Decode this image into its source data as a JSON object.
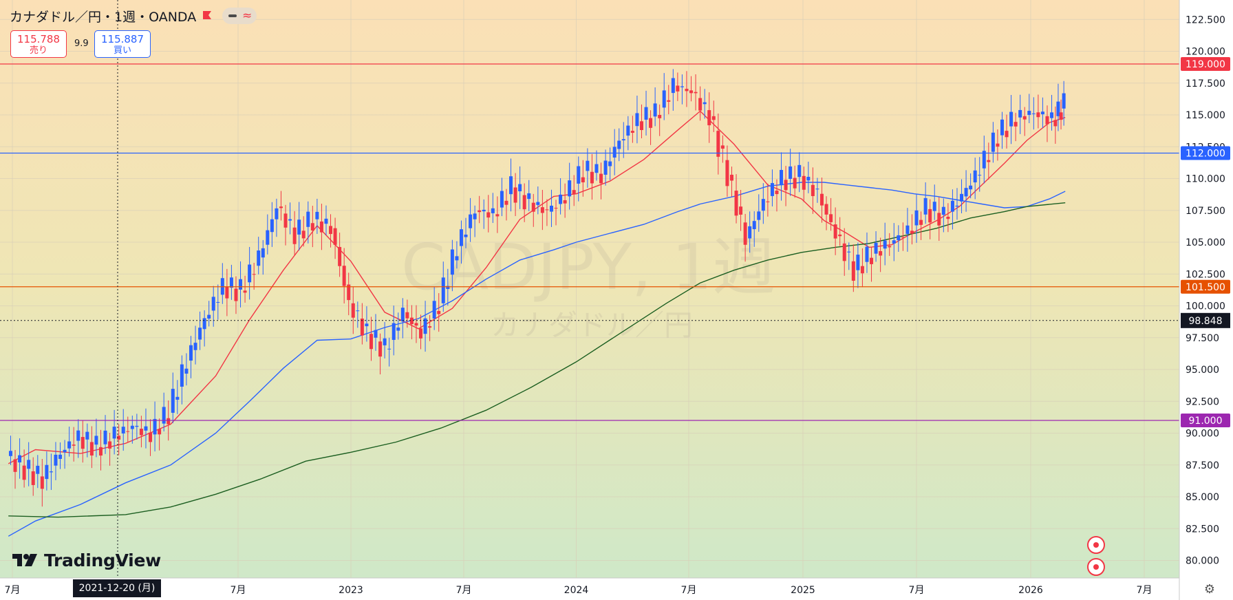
{
  "header": {
    "title": "カナダドル／円・1週・OANDA",
    "sell_price": "115.788",
    "sell_label": "売り",
    "buy_price": "115.887",
    "buy_label": "買い",
    "spread": "9.9"
  },
  "watermark": {
    "symbol": "CADJPY, 1週",
    "name": "カナダドル／円"
  },
  "logo_text": "TradingView",
  "crosshair_date_label": "2021-12-20 (月)",
  "colors": {
    "up": "#2962ff",
    "down": "#f23645",
    "ma_short": "#f23645",
    "ma_mid": "#2962ff",
    "ma_long": "#1b5e20",
    "line_119": "#f23645",
    "line_112": "#2962ff",
    "line_1015": "#e65100",
    "line_91": "#9c27b0",
    "last_price": "#131722"
  },
  "icons": [
    "flag-icon",
    "minus-icon",
    "wave-icon",
    "settings-gear-icon",
    "canada-flag-icon",
    "event-icon"
  ],
  "chart_data": {
    "type": "candlestick",
    "title": "カナダドル／円・1週・OANDA",
    "x_axis_labels": [
      "7月",
      "2023",
      "7月",
      "2024",
      "7月",
      "2025",
      "7月",
      "2026",
      "7月"
    ],
    "y_axis_labels": [
      "122.500",
      "120.000",
      "117.500",
      "115.000",
      "112.500",
      "110.000",
      "107.500",
      "105.000",
      "102.500",
      "100.000",
      "97.500",
      "95.000",
      "92.500",
      "90.000",
      "87.500",
      "85.000",
      "82.500",
      "80.000"
    ],
    "ylim": [
      79.0,
      123.0
    ],
    "grid": true,
    "horizontal_levels": [
      {
        "price": 119.0,
        "label": "119.000",
        "color": "#f23645"
      },
      {
        "price": 112.0,
        "label": "112.000",
        "color": "#2962ff"
      },
      {
        "price": 101.5,
        "label": "101.500",
        "color": "#e65100"
      },
      {
        "price": 91.0,
        "label": "91.000",
        "color": "#9c27b0"
      }
    ],
    "crosshair_price": {
      "price": 98.848,
      "label": "98.848"
    },
    "moving_averages": [
      {
        "color": "#f23645",
        "points": [
          [
            2021.48,
            87.6
          ],
          [
            2021.6,
            88.7
          ],
          [
            2021.8,
            88.4
          ],
          [
            2022.0,
            89.2
          ],
          [
            2022.2,
            90.7
          ],
          [
            2022.4,
            94.5
          ],
          [
            2022.55,
            98.9
          ],
          [
            2022.7,
            102.8
          ],
          [
            2022.85,
            106.3
          ],
          [
            2023.0,
            103.5
          ],
          [
            2023.15,
            99.5
          ],
          [
            2023.3,
            98.2
          ],
          [
            2023.45,
            99.8
          ],
          [
            2023.6,
            103.0
          ],
          [
            2023.75,
            106.8
          ],
          [
            2023.9,
            108.6
          ],
          [
            2024.0,
            108.8
          ],
          [
            2024.15,
            109.8
          ],
          [
            2024.3,
            111.5
          ],
          [
            2024.45,
            113.8
          ],
          [
            2024.55,
            115.3
          ],
          [
            2024.7,
            112.7
          ],
          [
            2024.85,
            109.5
          ],
          [
            2025.0,
            108.4
          ],
          [
            2025.1,
            106.7
          ],
          [
            2025.2,
            105.7
          ],
          [
            2025.3,
            104.6
          ],
          [
            2025.4,
            104.8
          ],
          [
            2025.5,
            105.8
          ],
          [
            2025.6,
            106.7
          ],
          [
            2025.7,
            107.8
          ],
          [
            2025.8,
            109.5
          ],
          [
            2025.9,
            111.2
          ],
          [
            2026.0,
            113.0
          ],
          [
            2026.1,
            114.4
          ],
          [
            2026.17,
            114.8
          ]
        ]
      },
      {
        "color": "#2962ff",
        "points": [
          [
            2021.48,
            81.9
          ],
          [
            2021.6,
            83.1
          ],
          [
            2021.8,
            84.4
          ],
          [
            2022.0,
            86.1
          ],
          [
            2022.2,
            87.5
          ],
          [
            2022.4,
            90.0
          ],
          [
            2022.55,
            92.5
          ],
          [
            2022.7,
            95.1
          ],
          [
            2022.85,
            97.3
          ],
          [
            2023.0,
            97.4
          ],
          [
            2023.15,
            98.3
          ],
          [
            2023.3,
            99.0
          ],
          [
            2023.45,
            100.4
          ],
          [
            2023.6,
            102.1
          ],
          [
            2023.75,
            103.6
          ],
          [
            2023.9,
            104.4
          ],
          [
            2024.0,
            105.0
          ],
          [
            2024.15,
            105.7
          ],
          [
            2024.3,
            106.4
          ],
          [
            2024.45,
            107.4
          ],
          [
            2024.55,
            108.0
          ],
          [
            2024.7,
            108.6
          ],
          [
            2024.85,
            109.4
          ],
          [
            2025.0,
            109.7
          ],
          [
            2025.1,
            109.7
          ],
          [
            2025.2,
            109.5
          ],
          [
            2025.3,
            109.3
          ],
          [
            2025.4,
            109.1
          ],
          [
            2025.5,
            108.8
          ],
          [
            2025.6,
            108.6
          ],
          [
            2025.7,
            108.3
          ],
          [
            2025.8,
            108.0
          ],
          [
            2025.9,
            107.7
          ],
          [
            2026.0,
            107.8
          ],
          [
            2026.1,
            108.4
          ],
          [
            2026.17,
            109.0
          ]
        ]
      },
      {
        "color": "#1b5e20",
        "points": [
          [
            2021.48,
            83.5
          ],
          [
            2021.7,
            83.4
          ],
          [
            2022.0,
            83.6
          ],
          [
            2022.2,
            84.2
          ],
          [
            2022.4,
            85.2
          ],
          [
            2022.6,
            86.4
          ],
          [
            2022.8,
            87.8
          ],
          [
            2023.0,
            88.5
          ],
          [
            2023.2,
            89.3
          ],
          [
            2023.4,
            90.4
          ],
          [
            2023.6,
            91.8
          ],
          [
            2023.8,
            93.6
          ],
          [
            2024.0,
            95.6
          ],
          [
            2024.2,
            97.9
          ],
          [
            2024.4,
            100.2
          ],
          [
            2024.55,
            101.8
          ],
          [
            2024.7,
            102.8
          ],
          [
            2024.85,
            103.6
          ],
          [
            2025.0,
            104.2
          ],
          [
            2025.15,
            104.6
          ],
          [
            2025.3,
            104.9
          ],
          [
            2025.45,
            105.5
          ],
          [
            2025.6,
            106.1
          ],
          [
            2025.75,
            106.9
          ],
          [
            2025.9,
            107.4
          ],
          [
            2026.0,
            107.8
          ],
          [
            2026.17,
            108.1
          ]
        ]
      }
    ],
    "candles_weekly_close": [
      [
        2021.48,
        88.2
      ],
      [
        2021.56,
        87.2
      ],
      [
        2021.64,
        86.4
      ],
      [
        2021.72,
        88.5
      ],
      [
        2021.8,
        89.7
      ],
      [
        2021.88,
        88.9
      ],
      [
        2021.96,
        89.8
      ],
      [
        2022.04,
        90.5
      ],
      [
        2022.12,
        89.9
      ],
      [
        2022.2,
        91.6
      ],
      [
        2022.28,
        95.7
      ],
      [
        2022.36,
        99.0
      ],
      [
        2022.44,
        101.5
      ],
      [
        2022.52,
        101.2
      ],
      [
        2022.6,
        103.8
      ],
      [
        2022.68,
        107.8
      ],
      [
        2022.76,
        105.6
      ],
      [
        2022.84,
        106.8
      ],
      [
        2022.92,
        106.1
      ],
      [
        2023.0,
        100.2
      ],
      [
        2023.08,
        97.8
      ],
      [
        2023.16,
        96.6
      ],
      [
        2023.24,
        99.5
      ],
      [
        2023.32,
        97.8
      ],
      [
        2023.4,
        100.2
      ],
      [
        2023.48,
        104.7
      ],
      [
        2023.56,
        107.5
      ],
      [
        2023.64,
        107.2
      ],
      [
        2023.72,
        109.3
      ],
      [
        2023.8,
        108.1
      ],
      [
        2023.88,
        107.4
      ],
      [
        2023.96,
        108.6
      ],
      [
        2024.04,
        110.6
      ],
      [
        2024.12,
        110.3
      ],
      [
        2024.2,
        113.0
      ],
      [
        2024.28,
        114.5
      ],
      [
        2024.36,
        115.0
      ],
      [
        2024.44,
        117.3
      ],
      [
        2024.52,
        116.8
      ],
      [
        2024.6,
        114.9
      ],
      [
        2024.68,
        110.3
      ],
      [
        2024.76,
        105.3
      ],
      [
        2024.84,
        108.2
      ],
      [
        2024.92,
        109.9
      ],
      [
        2025.0,
        110.2
      ],
      [
        2025.08,
        108.8
      ],
      [
        2025.16,
        105.6
      ],
      [
        2025.24,
        102.8
      ],
      [
        2025.32,
        104.1
      ],
      [
        2025.4,
        104.9
      ],
      [
        2025.48,
        105.9
      ],
      [
        2025.56,
        107.6
      ],
      [
        2025.64,
        107.0
      ],
      [
        2025.72,
        108.6
      ],
      [
        2025.8,
        110.8
      ],
      [
        2025.88,
        113.4
      ],
      [
        2025.96,
        114.8
      ],
      [
        2026.04,
        115.2
      ],
      [
        2026.12,
        114.6
      ],
      [
        2026.17,
        115.8
      ]
    ]
  }
}
